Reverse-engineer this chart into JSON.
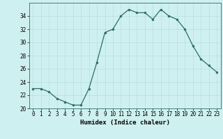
{
  "x": [
    0,
    1,
    2,
    3,
    4,
    5,
    6,
    7,
    8,
    9,
    10,
    11,
    12,
    13,
    14,
    15,
    16,
    17,
    18,
    19,
    20,
    21,
    22,
    23
  ],
  "y": [
    23,
    23,
    22.5,
    21.5,
    21,
    20.5,
    20.5,
    23,
    27,
    31.5,
    32,
    34,
    35,
    34.5,
    34.5,
    33.5,
    35,
    34,
    33.5,
    32,
    29.5,
    27.5,
    26.5,
    25.5
  ],
  "line_color": "#2e6b6b",
  "marker_color": "#2e6b6b",
  "bg_color": "#cff0f0",
  "grid_color": "#b8dede",
  "xlabel": "Humidex (Indice chaleur)",
  "ylim": [
    20,
    36
  ],
  "xlim": [
    -0.5,
    23.5
  ],
  "yticks": [
    20,
    22,
    24,
    26,
    28,
    30,
    32,
    34
  ],
  "xticks": [
    0,
    1,
    2,
    3,
    4,
    5,
    6,
    7,
    8,
    9,
    10,
    11,
    12,
    13,
    14,
    15,
    16,
    17,
    18,
    19,
    20,
    21,
    22,
    23
  ],
  "tick_fontsize": 5.5,
  "xlabel_fontsize": 6.5
}
